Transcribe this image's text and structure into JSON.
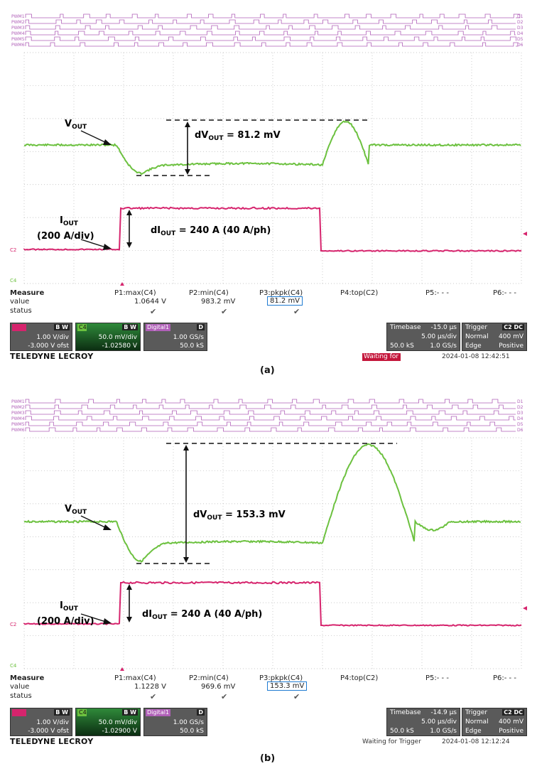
{
  "colors": {
    "vout_trace": "#6cc13f",
    "iout_trace": "#d6246d",
    "digital": "#b060b8",
    "grid": "#b8b8b8",
    "measure_box": "#1f7bd1",
    "waiting_bar": "#c4163b"
  },
  "channels": {
    "digital_labels": [
      "PWM1",
      "PWM2",
      "PWM3",
      "PWM4",
      "PWM5",
      "PWM6"
    ],
    "digital_right": [
      "D1",
      "D2",
      "D3",
      "D4",
      "D5",
      "D6"
    ],
    "c2_marker": "C2",
    "c4_marker": "C4"
  },
  "panels": [
    {
      "caption": "(a)",
      "annotations": {
        "vout": "V",
        "vout_sub": "OUT",
        "iout": "I",
        "iout_sub": "OUT",
        "iout_scale": "(200 A/div)",
        "dv_pre": "dV",
        "dv_sub": "OUT",
        "dv_value": " = 81.2 mV",
        "di_pre": "dI",
        "di_sub": "OUT",
        "di_value": " = 240 A (40 A/ph)"
      },
      "measure": {
        "title": "Measure",
        "row_value": "value",
        "row_status": "status",
        "params": [
          "P1:max(C4)",
          "P2:min(C4)",
          "P3:pkpk(C4)",
          "P4:top(C2)",
          "P5:- - -",
          "P6:- - -"
        ],
        "values": [
          "1.0644 V",
          "983.2 mV",
          "81.2 mV",
          "",
          "",
          ""
        ]
      },
      "c2_tile": {
        "flags": "B W",
        "l1": "1.00 V/div",
        "l2": "-3.000 V ofst"
      },
      "c4_tile": {
        "label": "C4",
        "flags": "B W",
        "l1": "50.0 mV/div",
        "l2": "-1.02580 V"
      },
      "digital_tile": {
        "label": "Digital1",
        "flags": "D",
        "l1": "1.00 GS/s",
        "l2": "50.0 kS"
      },
      "timebase": {
        "label": "Timebase",
        "value": "-15.0 µs",
        "div": "5.00 µs/div",
        "samples": "50.0 kS",
        "rate": "1.0 GS/s"
      },
      "trigger": {
        "label": "Trigger",
        "src": "C2 DC",
        "mode": "Normal",
        "level": "400 mV",
        "type": "Edge",
        "slope": "Positive"
      },
      "brand": "TELEDYNE LECROY",
      "waiting": "Waiting for Trigger",
      "timestamp": "2024-01-08 12:42:51"
    },
    {
      "caption": "(b)",
      "annotations": {
        "vout": "V",
        "vout_sub": "OUT",
        "iout": "I",
        "iout_sub": "OUT",
        "iout_scale": "(200 A/div)",
        "dv_pre": "dV",
        "dv_sub": "OUT",
        "dv_value": " = 153.3 mV",
        "di_pre": "dI",
        "di_sub": "OUT",
        "di_value": " = 240 A (40 A/ph)"
      },
      "measure": {
        "title": "Measure",
        "row_value": "value",
        "row_status": "status",
        "params": [
          "P1:max(C4)",
          "P2:min(C4)",
          "P3:pkpk(C4)",
          "P4:top(C2)",
          "P5:- - -",
          "P6:- - -"
        ],
        "values": [
          "1.1228 V",
          "969.6 mV",
          "153.3 mV",
          "",
          "",
          ""
        ]
      },
      "c2_tile": {
        "flags": "B W",
        "l1": "1.00 V/div",
        "l2": "-3.000 V ofst"
      },
      "c4_tile": {
        "label": "C4",
        "flags": "B W",
        "l1": "50.0 mV/div",
        "l2": "-1.02900 V"
      },
      "digital_tile": {
        "label": "Digital1",
        "flags": "D",
        "l1": "1.00 GS/s",
        "l2": "50.0 kS"
      },
      "timebase": {
        "label": "Timebase",
        "value": "-14.9 µs",
        "div": "5.00 µs/div",
        "samples": "50.0 kS",
        "rate": "1.0 GS/s"
      },
      "trigger": {
        "label": "Trigger",
        "src": "C2 DC",
        "mode": "Normal",
        "level": "400 mV",
        "type": "Edge",
        "slope": "Positive"
      },
      "brand": "TELEDYNE LECROY",
      "waiting": "Waiting for Trigger",
      "timestamp": "2024-01-08 12:12:24"
    }
  ]
}
